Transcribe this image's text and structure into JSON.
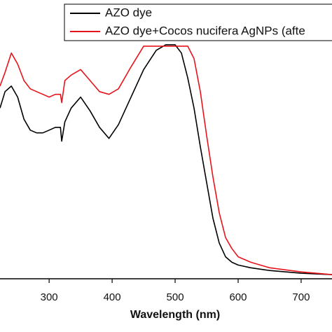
{
  "chart_data": {
    "type": "line",
    "xlabel": "Wavelength (nm)",
    "x": [
      222,
      230,
      240,
      250,
      260,
      270,
      280,
      290,
      300,
      310,
      318,
      320,
      325,
      335,
      350,
      365,
      380,
      395,
      410,
      430,
      450,
      470,
      485,
      500,
      510,
      520,
      530,
      540,
      550,
      560,
      570,
      580,
      590,
      600,
      620,
      650,
      700,
      749
    ],
    "series": [
      {
        "name": "AZO dye",
        "color": "#000000",
        "values": [
          0.62,
          0.68,
          0.7,
          0.66,
          0.58,
          0.54,
          0.53,
          0.53,
          0.54,
          0.55,
          0.55,
          0.5,
          0.57,
          0.62,
          0.66,
          0.61,
          0.55,
          0.51,
          0.56,
          0.66,
          0.76,
          0.83,
          0.85,
          0.85,
          0.82,
          0.73,
          0.62,
          0.48,
          0.35,
          0.22,
          0.13,
          0.08,
          0.06,
          0.05,
          0.04,
          0.03,
          0.02,
          0.015
        ]
      },
      {
        "name": "AZO dye+Cocos nucifera AgNPs (afte",
        "color": "#e8141c",
        "values": [
          0.7,
          0.75,
          0.82,
          0.78,
          0.72,
          0.69,
          0.68,
          0.67,
          0.66,
          0.67,
          0.67,
          0.64,
          0.72,
          0.74,
          0.76,
          0.72,
          0.68,
          0.67,
          0.69,
          0.77,
          0.845,
          0.845,
          0.845,
          0.845,
          0.845,
          0.845,
          0.8,
          0.68,
          0.52,
          0.37,
          0.24,
          0.15,
          0.11,
          0.08,
          0.06,
          0.04,
          0.025,
          0.015
        ]
      }
    ],
    "xlim": [
      222,
      749
    ],
    "xticks": [
      300,
      400,
      500,
      600,
      700
    ],
    "ylim": [
      0,
      1
    ]
  }
}
